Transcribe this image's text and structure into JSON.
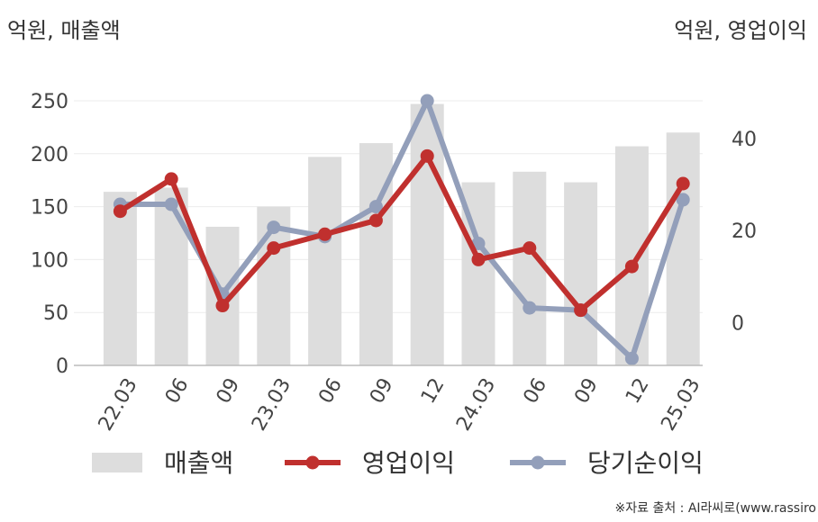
{
  "chart_data": {
    "type": "bar+line",
    "categories": [
      "22.03",
      "06",
      "09",
      "23.03",
      "06",
      "09",
      "12",
      "24.03",
      "06",
      "09",
      "12",
      "25.03"
    ],
    "y_left": {
      "unit_label": "억원, 매출액",
      "range": [
        0,
        250
      ],
      "ticks": [
        0,
        50,
        100,
        150,
        200,
        250
      ]
    },
    "y_right": {
      "unit_label": "억원, 영업이익",
      "range": [
        -9.5,
        48
      ],
      "ticks": [
        0,
        20,
        40
      ]
    },
    "series": [
      {
        "name": "매출액",
        "type": "bar",
        "axis": "left",
        "color": "#dddddd",
        "values": [
          164,
          168,
          131,
          150,
          197,
          210,
          247,
          173,
          183,
          173,
          207,
          220
        ]
      },
      {
        "name": "영업이익",
        "type": "line",
        "axis": "right",
        "color": "#c0302e",
        "values": [
          24,
          31,
          3.5,
          16,
          19,
          22,
          36,
          13.5,
          16,
          2.5,
          12,
          30
        ]
      },
      {
        "name": "당기순이익",
        "type": "line",
        "axis": "right",
        "color": "#939fba",
        "values": [
          25.5,
          25.5,
          6,
          20.5,
          18.5,
          25,
          48,
          17,
          3,
          2.5,
          -8,
          26.5
        ]
      }
    ],
    "legend_position": "bottom",
    "grid": "horizontal"
  },
  "source_text": "※자료 출처 : AI라씨로(www.rassiro"
}
